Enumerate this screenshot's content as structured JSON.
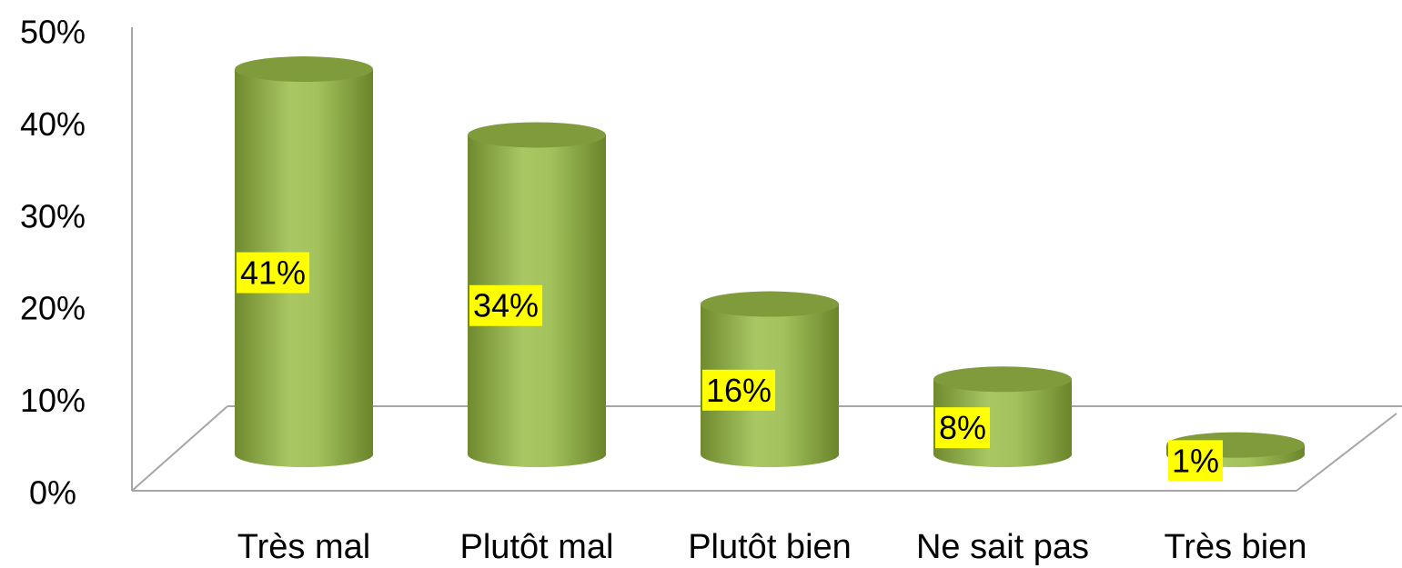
{
  "chart_data": {
    "type": "bar",
    "categories": [
      "Très mal",
      "Plutôt mal",
      "Plutôt bien",
      "Ne sait pas",
      "Très bien"
    ],
    "values": [
      41,
      34,
      16,
      8,
      1
    ],
    "value_labels": [
      "41%",
      "34%",
      "16%",
      "8%",
      "1%"
    ],
    "color": "#9bbb59",
    "ylim": [
      0,
      50
    ],
    "yticks": [
      {
        "value": 0,
        "label": "0%"
      },
      {
        "value": 10,
        "label": "10%"
      },
      {
        "value": 20,
        "label": "20%"
      },
      {
        "value": 30,
        "label": "30%"
      },
      {
        "value": 40,
        "label": "40%"
      },
      {
        "value": 50,
        "label": "50%"
      }
    ],
    "grid": false
  }
}
